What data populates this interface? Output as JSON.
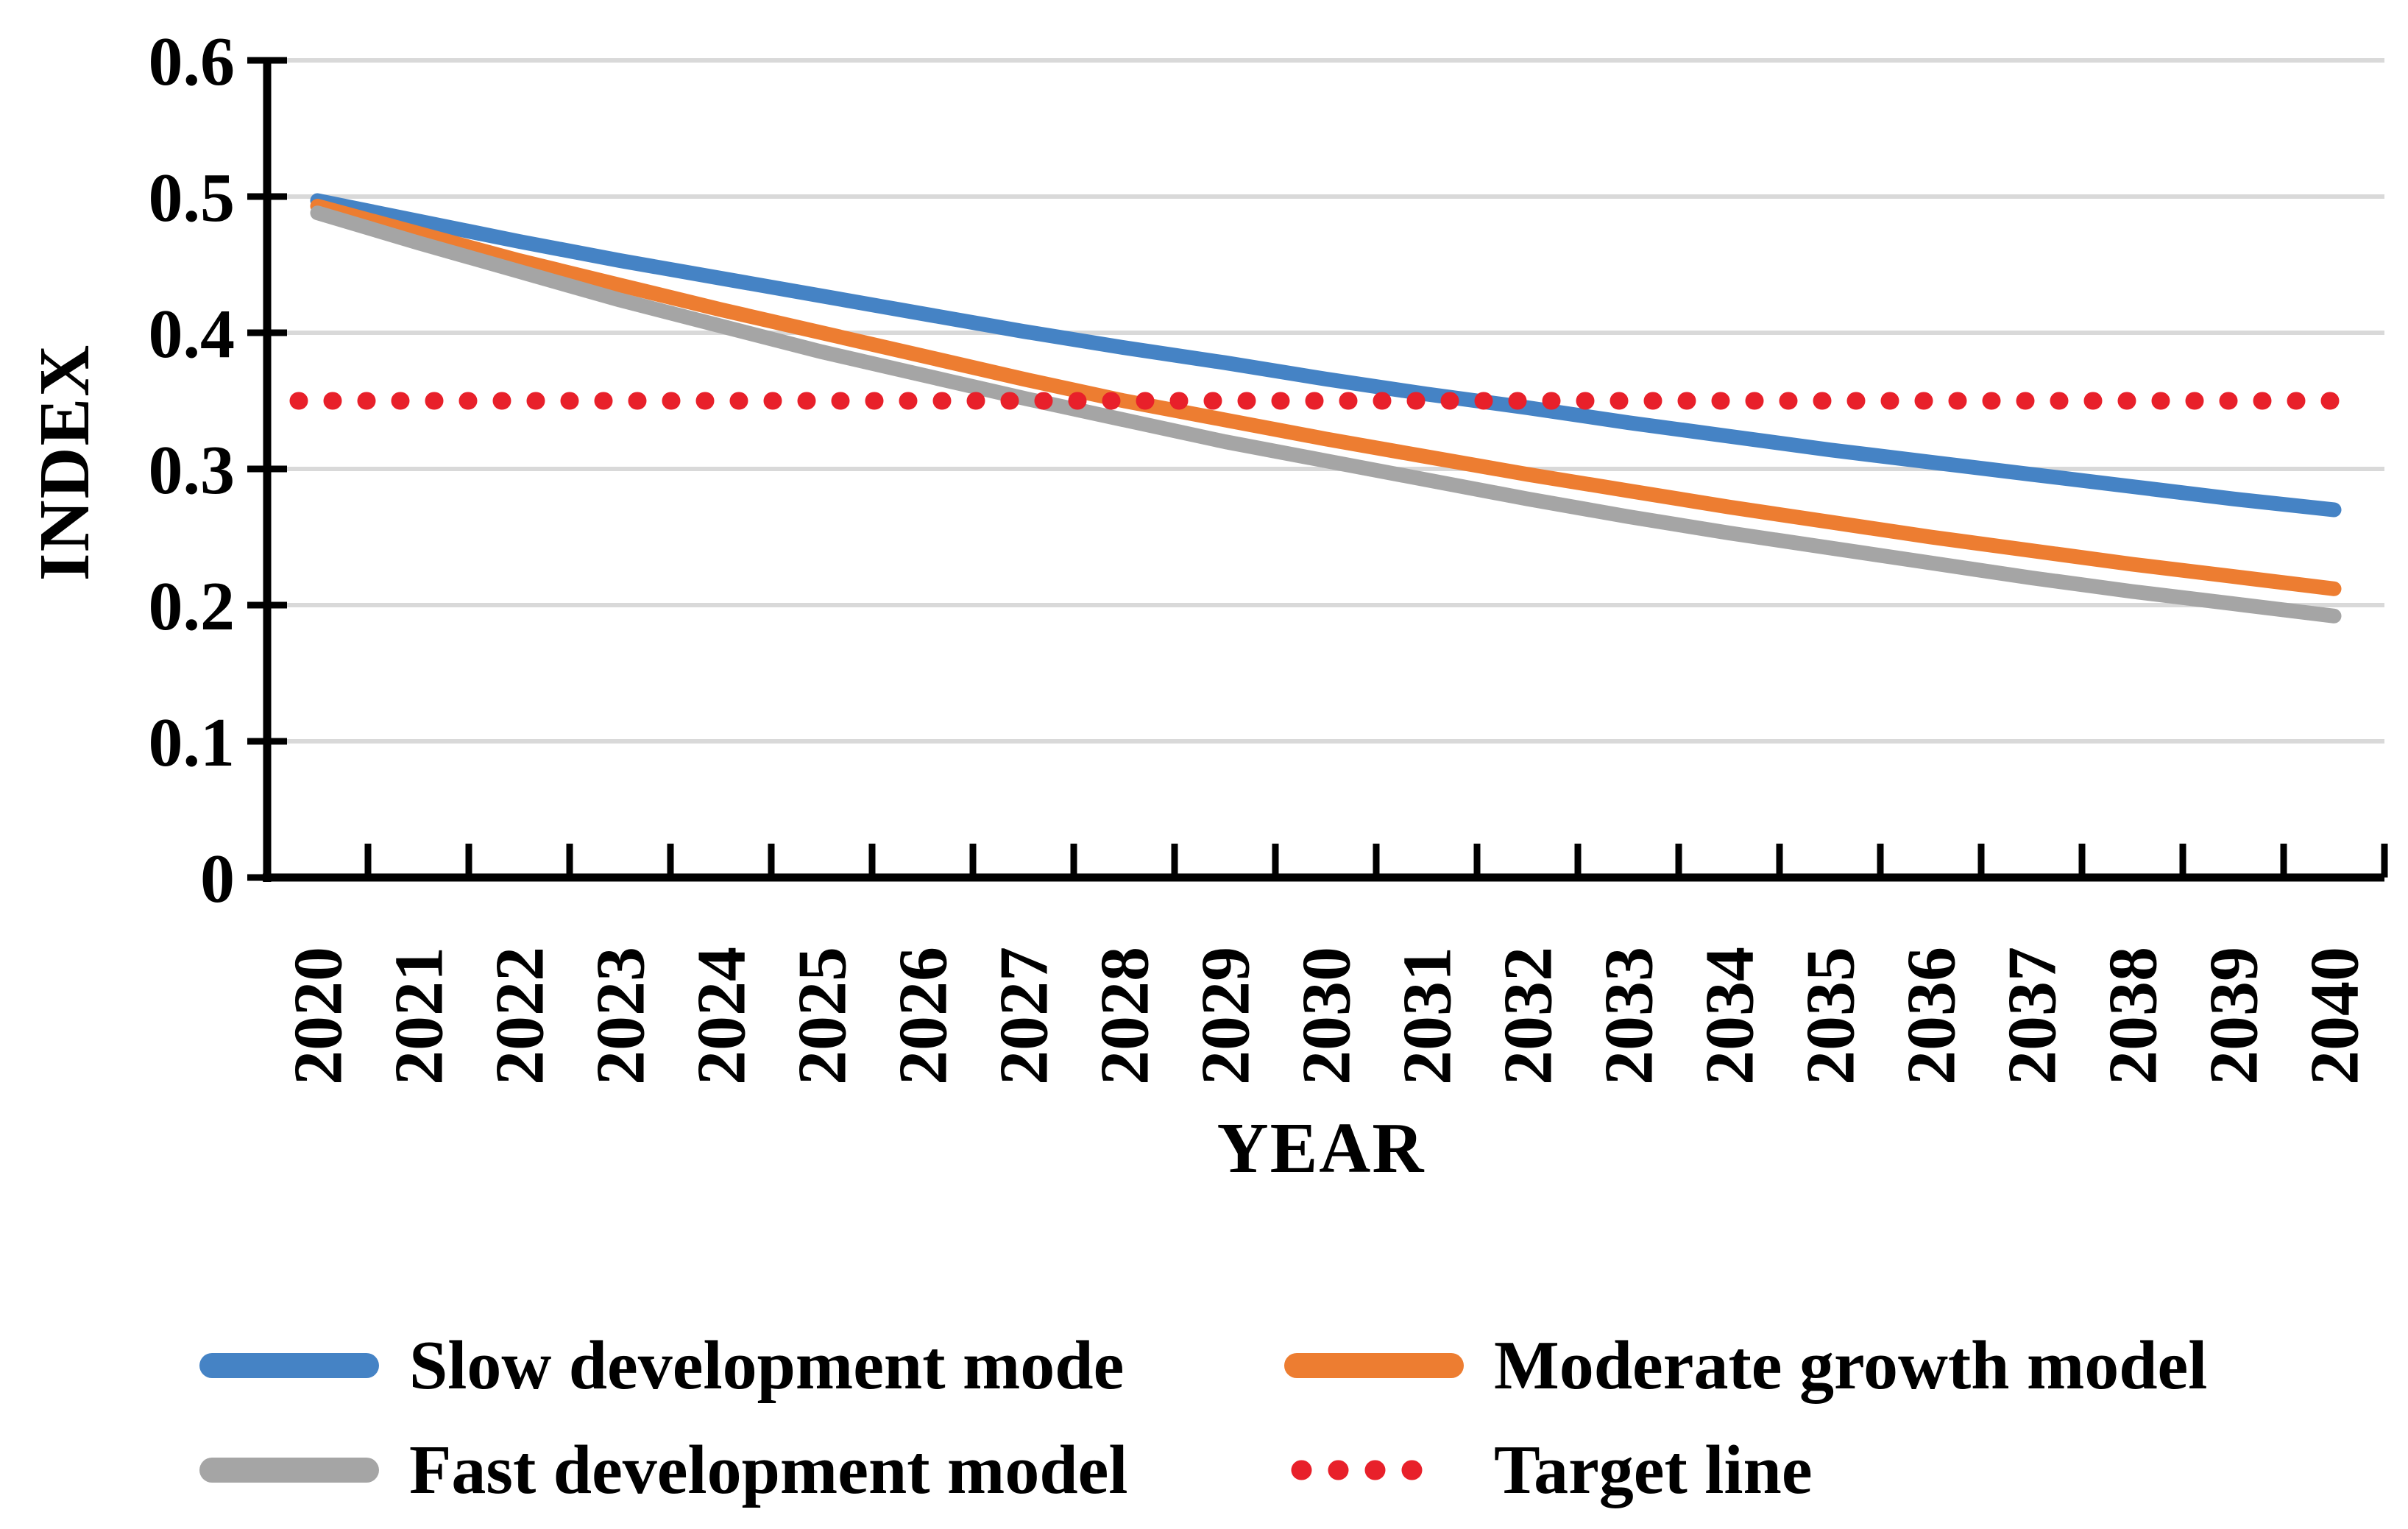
{
  "chart_data": {
    "type": "line",
    "title": "",
    "xlabel": "YEAR",
    "ylabel": "INDEX",
    "x": [
      "2020",
      "2021",
      "2022",
      "2023",
      "2024",
      "2025",
      "2026",
      "2027",
      "2028",
      "2029",
      "2030",
      "2031",
      "2032",
      "2033",
      "2034",
      "2035",
      "2036",
      "2037",
      "2038",
      "2039",
      "2040"
    ],
    "ylim": [
      0,
      0.6
    ],
    "yticks": [
      "0",
      "0.1",
      "0.2",
      "0.3",
      "0.4",
      "0.5",
      "0.6"
    ],
    "grid": "horizontal-gridlines-on",
    "legend_position": "bottom-two-columns",
    "x_tick_label_rotation_deg": -90,
    "colors": {
      "gridline": "#D9D9D9",
      "axis": "#000000",
      "background": "#FFFFFF"
    },
    "series": [
      {
        "name": "Slow development mode",
        "color": "#4583C5",
        "style": "solid",
        "values": [
          0.497,
          0.482,
          0.467,
          0.453,
          0.44,
          0.427,
          0.414,
          0.401,
          0.389,
          0.378,
          0.366,
          0.355,
          0.345,
          0.334,
          0.324,
          0.314,
          0.305,
          0.296,
          0.287,
          0.278,
          0.27
        ]
      },
      {
        "name": "Moderate growth model",
        "color": "#ED7D31",
        "style": "solid",
        "values": [
          0.493,
          0.473,
          0.453,
          0.435,
          0.417,
          0.4,
          0.383,
          0.366,
          0.35,
          0.336,
          0.322,
          0.309,
          0.296,
          0.284,
          0.272,
          0.261,
          0.25,
          0.24,
          0.23,
          0.221,
          0.212
        ]
      },
      {
        "name": "Fast development model",
        "color": "#A5A5A5",
        "style": "solid",
        "values": [
          0.488,
          0.466,
          0.445,
          0.424,
          0.405,
          0.386,
          0.369,
          0.352,
          0.336,
          0.32,
          0.306,
          0.292,
          0.278,
          0.265,
          0.253,
          0.242,
          0.231,
          0.22,
          0.21,
          0.201,
          0.192
        ]
      },
      {
        "name": "Target line",
        "color": "#E8202A",
        "style": "dotted",
        "values": [
          0.35,
          0.35,
          0.35,
          0.35,
          0.35,
          0.35,
          0.35,
          0.35,
          0.35,
          0.35,
          0.35,
          0.35,
          0.35,
          0.35,
          0.35,
          0.35,
          0.35,
          0.35,
          0.35,
          0.35,
          0.35
        ]
      }
    ]
  }
}
